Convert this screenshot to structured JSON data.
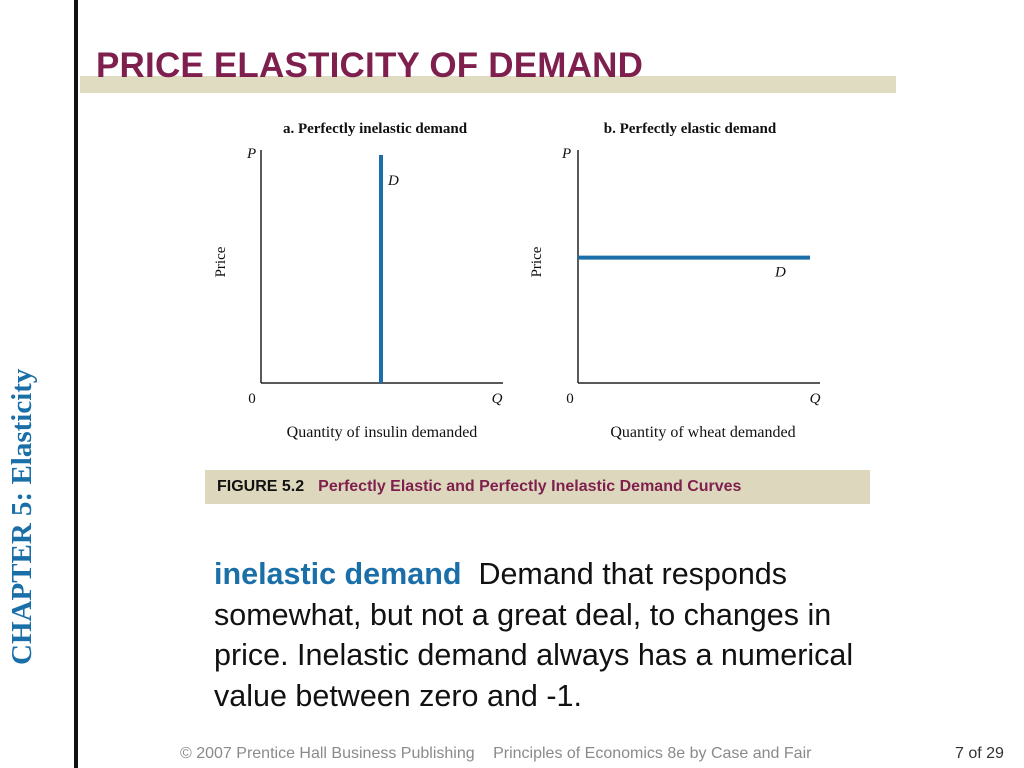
{
  "slide": {
    "title": "PRICE ELASTICITY OF DEMAND",
    "chapter_label": "CHAPTER 5:  Elasticity"
  },
  "figure": {
    "number": "FIGURE 5.2",
    "title": "Perfectly Elastic and Perfectly Inelastic Demand Curves"
  },
  "chart_data": [
    {
      "type": "line",
      "title": "a. Perfectly inelastic demand",
      "xlabel": "Quantity of insulin demanded",
      "ylabel": "Price",
      "x_axis_letter": "Q",
      "y_axis_letter": "P",
      "origin_label": "0",
      "series": [
        {
          "name": "D",
          "curve": "vertical",
          "x": [
            0.5,
            0.5
          ],
          "y": [
            0,
            1
          ]
        }
      ],
      "color": "#1b6fa8"
    },
    {
      "type": "line",
      "title": "b. Perfectly elastic demand",
      "xlabel": "Quantity of wheat demanded",
      "ylabel": "Price",
      "x_axis_letter": "Q",
      "y_axis_letter": "P",
      "origin_label": "0",
      "series": [
        {
          "name": "D",
          "curve": "horizontal",
          "x": [
            0,
            1
          ],
          "y": [
            0.55,
            0.55
          ]
        }
      ],
      "color": "#1b6fa8"
    }
  ],
  "definition": {
    "term": "inelastic demand",
    "text": "Demand that responds somewhat, but not a great deal, to changes in price.  Inelastic demand always has a numerical value between zero and -1."
  },
  "footer": {
    "copyright": "© 2007 Prentice Hall Business Publishing",
    "book": "Principles of Economics 8e by Case and Fair",
    "page": "7 of 29"
  },
  "colors": {
    "title": "#7f1f4e",
    "accent_blue": "#1b6fa8",
    "title_bar": "#e0dcc2",
    "caption_bg": "#ddd8bd"
  }
}
